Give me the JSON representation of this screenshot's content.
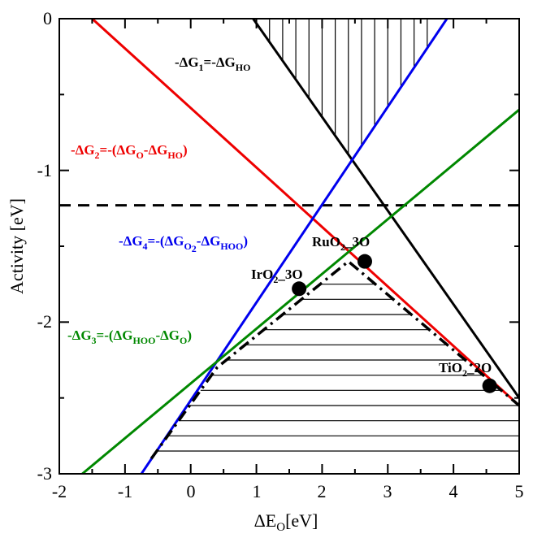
{
  "chart_data": {
    "type": "line",
    "title": "",
    "xlabel": "ΔE_O[eV]",
    "ylabel": "Activity [eV]",
    "xlim": [
      -2,
      5
    ],
    "ylim": [
      -3,
      0
    ],
    "xticks": [
      "-2",
      "-1",
      "0",
      "1",
      "2",
      "3",
      "4",
      "5"
    ],
    "yticks": [
      "0",
      "-1",
      "-2",
      "-3"
    ],
    "grid": false,
    "series": [
      {
        "name": "-ΔG1=-ΔGHO",
        "color": "#000000",
        "x": [
          0.95,
          5.0
        ],
        "y": [
          0.0,
          -2.5
        ]
      },
      {
        "name": "-ΔG2=-(ΔGO-ΔGHO)",
        "color": "#ee0000",
        "x": [
          -1.5,
          5.0
        ],
        "y": [
          0.0,
          -2.55
        ]
      },
      {
        "name": "-ΔG4=-(ΔGO2-ΔGHOO)",
        "color": "#0000ee",
        "x": [
          -0.75,
          3.9
        ],
        "y": [
          -3.0,
          0.0
        ]
      },
      {
        "name": "-ΔG3=-(ΔGHOO-ΔGO)",
        "color": "#008800",
        "x": [
          -1.65,
          5.0
        ],
        "y": [
          -3.0,
          -0.6
        ]
      }
    ],
    "reference_line": {
      "y": -1.23,
      "style": "dashed",
      "color": "#000000"
    },
    "volcano_outline": {
      "style": "dash-dot",
      "color": "#000000",
      "x": [
        -0.6,
        0.4,
        2.4,
        5.0
      ],
      "y": [
        -2.9,
        -2.3,
        -1.6,
        -2.55
      ]
    },
    "points": [
      {
        "label": "IrO2_3O",
        "x": 1.65,
        "y": -1.78
      },
      {
        "label": "RuO2_3O",
        "x": 2.65,
        "y": -1.6
      },
      {
        "label": "TiO2_2O",
        "x": 4.55,
        "y": -2.42
      }
    ]
  }
}
